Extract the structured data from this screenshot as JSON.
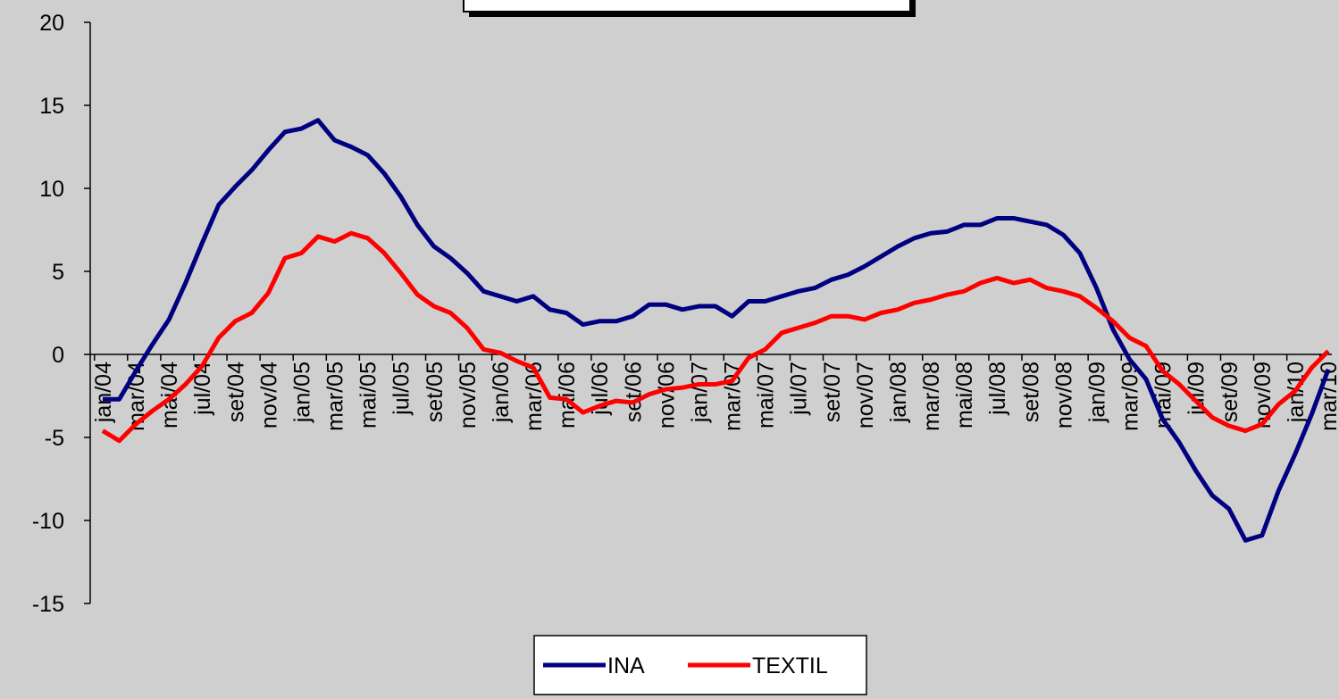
{
  "chart_data": {
    "type": "line",
    "categories": [
      "jan/04",
      null,
      "mar/04",
      null,
      "mai/04",
      null,
      "jul/04",
      null,
      "set/04",
      null,
      "nov/04",
      null,
      "jan/05",
      null,
      "mar/05",
      null,
      "mai/05",
      null,
      "jul/05",
      null,
      "set/05",
      null,
      "nov/05",
      null,
      "jan/06",
      null,
      "mar/06",
      null,
      "mai/06",
      null,
      "jul/06",
      null,
      "set/06",
      null,
      "nov/06",
      null,
      "jan/07",
      null,
      "mar/07",
      null,
      "mai/07",
      null,
      "jul/07",
      null,
      "set/07",
      null,
      "nov/07",
      null,
      "jan/08",
      null,
      "mar/08",
      null,
      "mai/08",
      null,
      "jul/08",
      null,
      "set/08",
      null,
      "nov/08",
      null,
      "jan/09",
      null,
      "mar/09",
      null,
      "mai/09",
      null,
      "jul/09",
      null,
      "set/09",
      null,
      "nov/09",
      null,
      "jan/10",
      null,
      "mar/10"
    ],
    "series": [
      {
        "name": "INA",
        "color": "#000080",
        "values": [
          -2.7,
          -2.7,
          -1,
          0.6,
          2.1,
          4.3,
          6.7,
          9.0,
          10.1,
          11.1,
          12.3,
          13.4,
          13.6,
          14.1,
          12.9,
          12.5,
          12.0,
          10.9,
          9.5,
          7.8,
          6.5,
          5.8,
          4.9,
          3.8,
          3.5,
          3.2,
          3.5,
          2.7,
          2.5,
          1.8,
          2.0,
          2.0,
          2.3,
          3.0,
          3.0,
          2.7,
          2.9,
          2.9,
          2.3,
          3.2,
          3.2,
          3.5,
          3.8,
          4.0,
          4.5,
          4.8,
          5.3,
          5.9,
          6.5,
          7.0,
          7.3,
          7.4,
          7.8,
          7.8,
          8.2,
          8.2,
          8.0,
          7.8,
          7.2,
          6.1,
          4.0,
          1.5,
          -0.3,
          -1.5,
          -3.9,
          -5.3,
          -7.0,
          -8.5,
          -9.3,
          -11.2,
          -10.9,
          -8.2,
          -6.0,
          -3.6,
          -0.9
        ]
      },
      {
        "name": "TEXTIL",
        "color": "#ff0000",
        "values": [
          -4.6,
          -5.2,
          -4.2,
          -3.4,
          -2.7,
          -1.8,
          -0.7,
          1.0,
          2.0,
          2.5,
          3.7,
          5.8,
          6.1,
          7.1,
          6.8,
          7.3,
          7.0,
          6.1,
          4.9,
          3.6,
          2.9,
          2.5,
          1.6,
          0.3,
          0.1,
          -0.4,
          -0.8,
          -2.6,
          -2.7,
          -3.5,
          -3.1,
          -2.8,
          -2.9,
          -2.4,
          -2.1,
          -2.0,
          -1.8,
          -1.8,
          -1.6,
          -0.2,
          0.3,
          1.3,
          1.6,
          1.9,
          2.3,
          2.3,
          2.1,
          2.5,
          2.7,
          3.1,
          3.3,
          3.6,
          3.8,
          4.3,
          4.6,
          4.3,
          4.5,
          4.0,
          3.8,
          3.5,
          2.8,
          2.0,
          1.0,
          0.5,
          -1.0,
          -1.8,
          -2.8,
          -3.8,
          -4.3,
          -4.6,
          -4.2,
          -3.0,
          -2.2,
          -0.8,
          0.2
        ]
      }
    ],
    "ylim": [
      -15,
      20
    ],
    "yticks": [
      -15,
      -10,
      -5,
      0,
      5,
      10,
      15,
      20
    ],
    "legend": "bottom"
  }
}
